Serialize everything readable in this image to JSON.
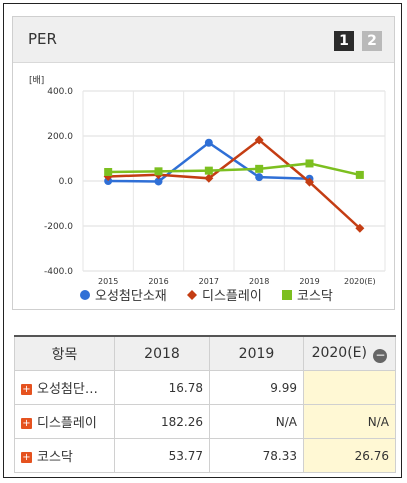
{
  "panel": {
    "title": "PER",
    "pages": [
      "1",
      "2"
    ]
  },
  "colors": {
    "series1": "#2f6fd6",
    "series2": "#c43d13",
    "series3": "#7cbf20"
  },
  "chart_data": {
    "type": "line",
    "unit_label": "[배]",
    "x": [
      "2015",
      "2016",
      "2017",
      "2018",
      "2019",
      "2020(E)"
    ],
    "ylim": [
      -400,
      400
    ],
    "yticks": [
      "400.0",
      "200.0",
      "0.0",
      "-200.0",
      "-400.0"
    ],
    "grid": true,
    "legend": "bottom",
    "series": [
      {
        "name": "오성첨단소재",
        "marker": "circle",
        "values": [
          0,
          -2,
          170,
          17,
          10,
          null
        ]
      },
      {
        "name": "디스플레이",
        "marker": "diamond",
        "values": [
          20,
          28,
          12,
          182,
          -5,
          -210
        ]
      },
      {
        "name": "코스닥",
        "marker": "square",
        "values": [
          40,
          43,
          46,
          54,
          78,
          27
        ]
      }
    ]
  },
  "table": {
    "headers": [
      "항목",
      "2018",
      "2019",
      "2020(E)"
    ],
    "rows": [
      {
        "name": "오성첨단…",
        "values": [
          "16.78",
          "9.99",
          ""
        ]
      },
      {
        "name": "디스플레이",
        "values": [
          "182.26",
          "N/A",
          "N/A"
        ]
      },
      {
        "name": "코스닥",
        "values": [
          "53.77",
          "78.33",
          "26.76"
        ]
      }
    ]
  }
}
